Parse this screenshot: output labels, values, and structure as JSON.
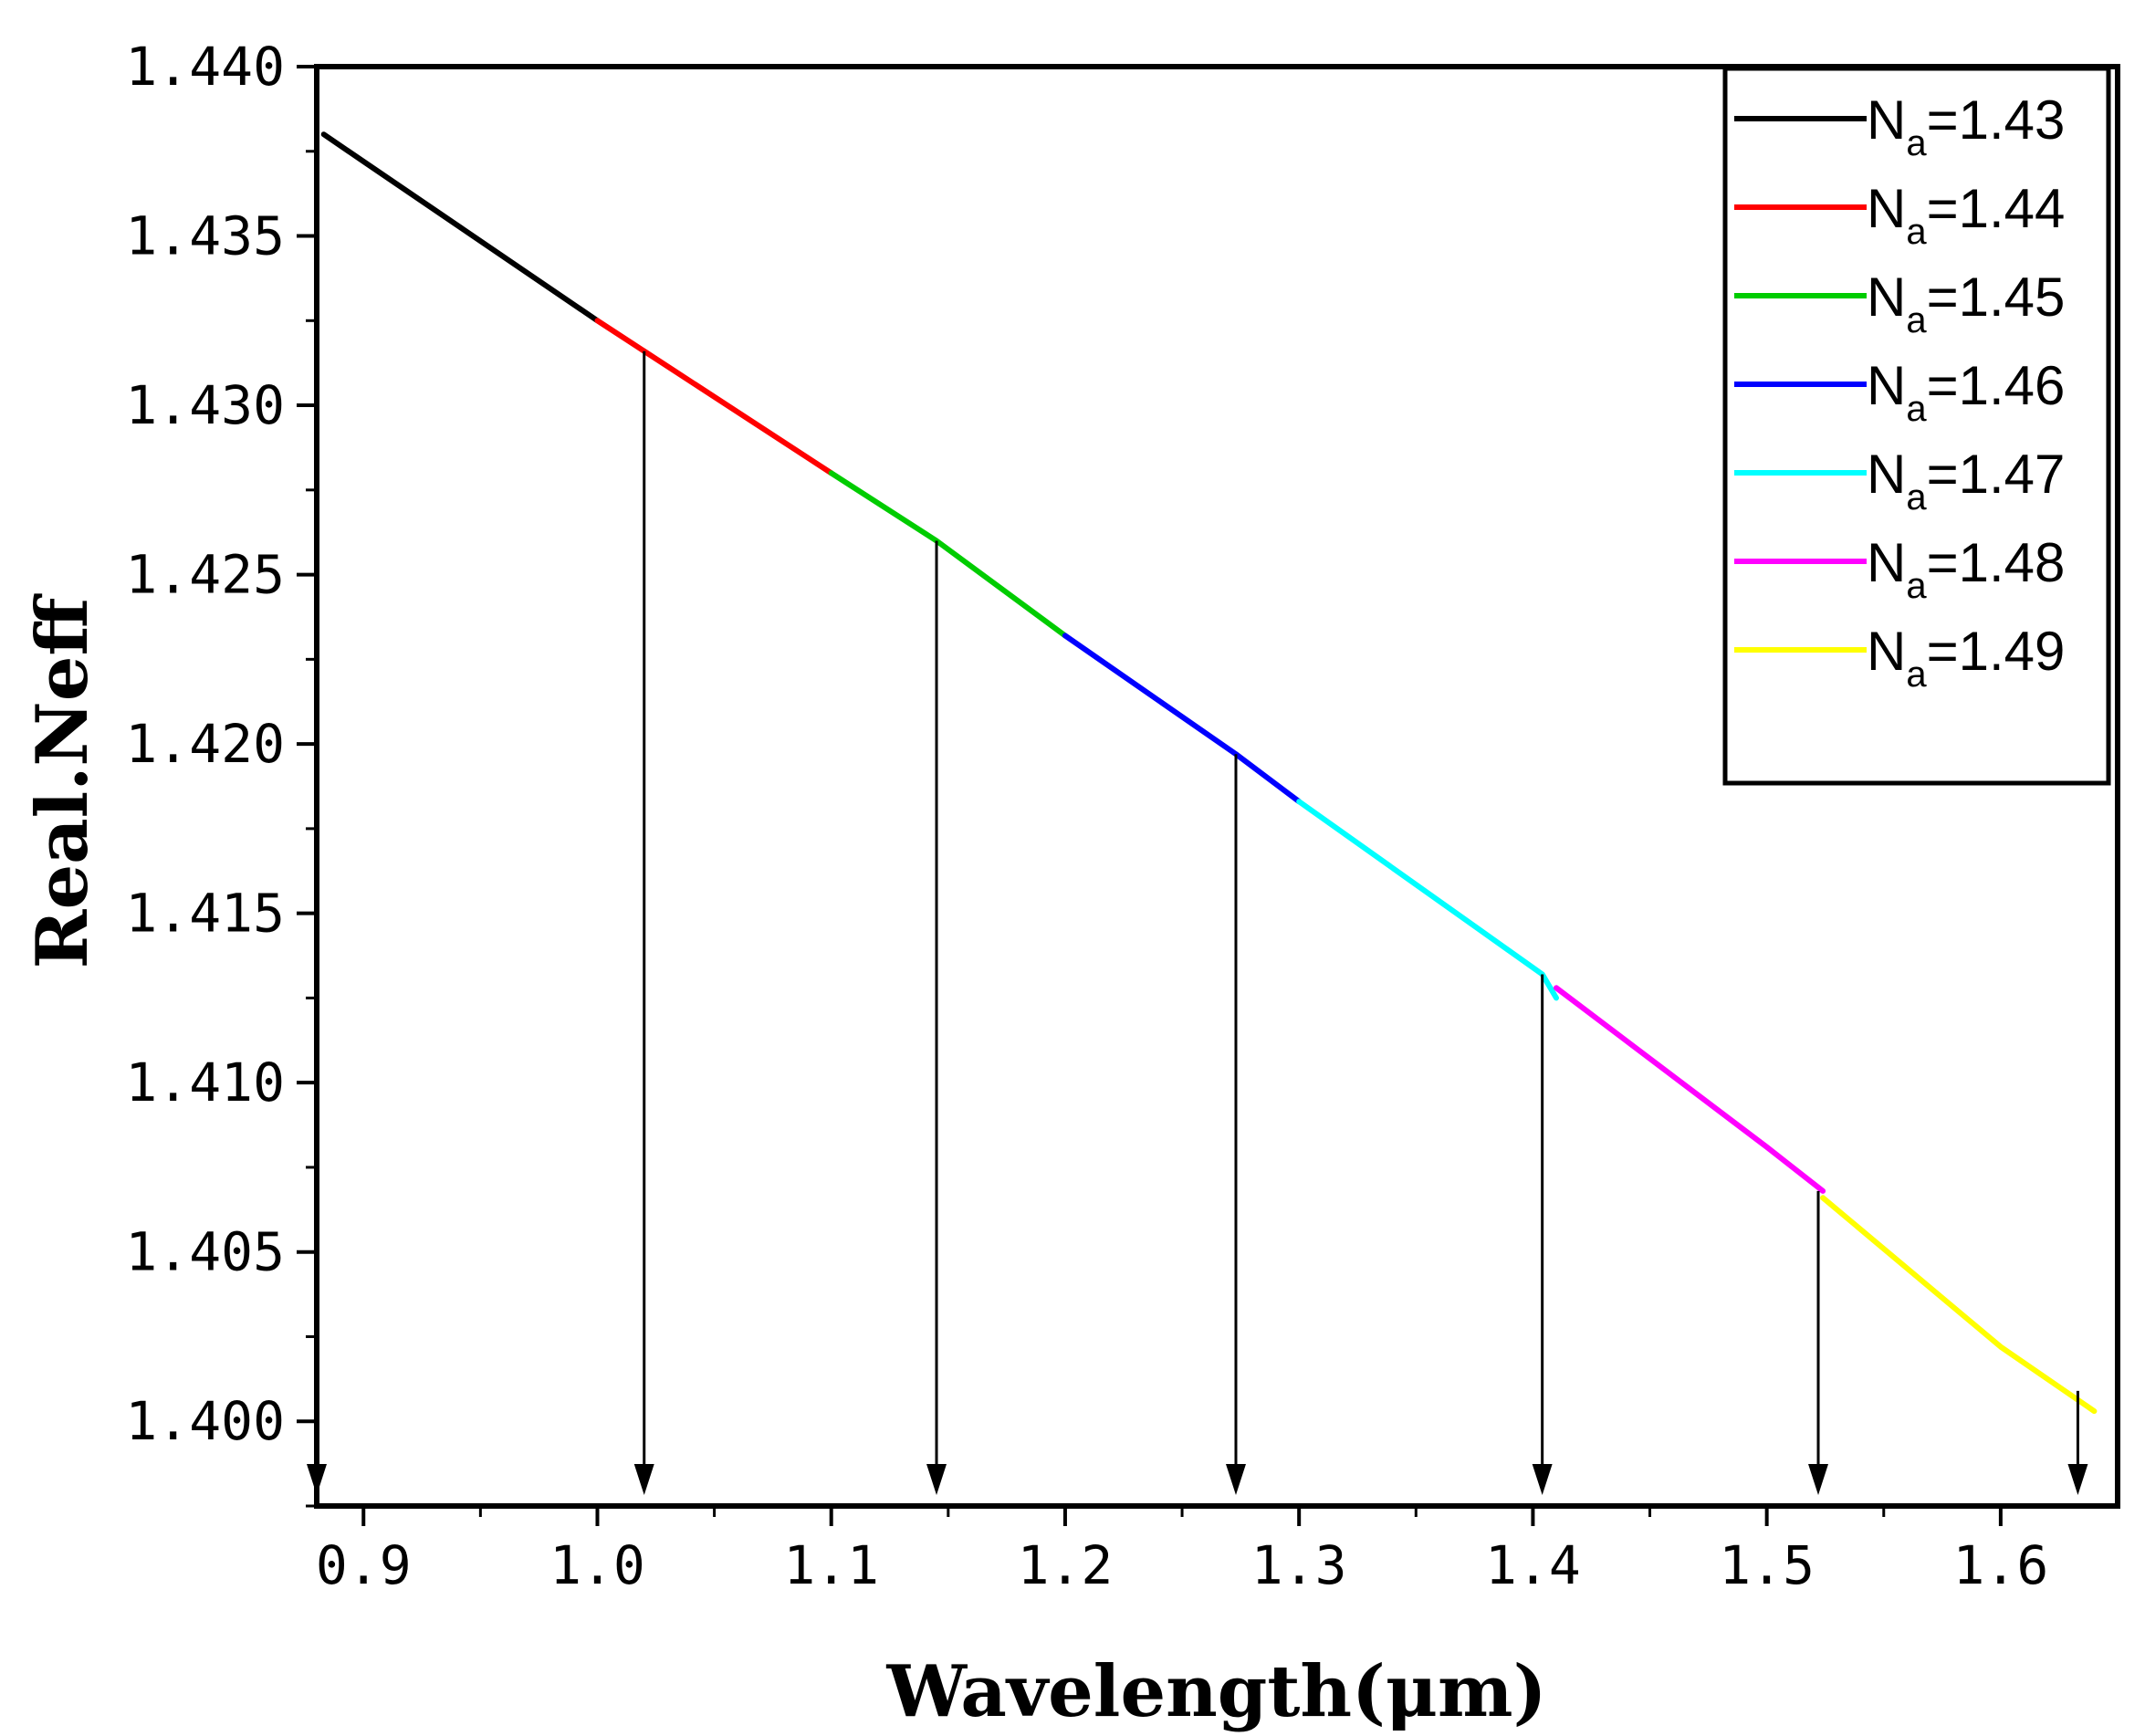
{
  "chart_data": {
    "type": "line",
    "title": "",
    "xlabel": "Wavelength(μm)",
    "ylabel": "Real.Neff",
    "xlim": [
      0.88,
      1.65
    ],
    "ylim": [
      1.3975,
      1.44
    ],
    "x_ticks": [
      0.9,
      1.0,
      1.1,
      1.2,
      1.3,
      1.4,
      1.5,
      1.6
    ],
    "x_tick_labels": [
      "0.9",
      "1.0",
      "1.1",
      "1.2",
      "1.3",
      "1.4",
      "1.5",
      "1.6"
    ],
    "y_ticks": [
      1.4,
      1.405,
      1.41,
      1.415,
      1.42,
      1.425,
      1.43,
      1.435,
      1.44
    ],
    "y_tick_labels": [
      "1.400",
      "1.405",
      "1.410",
      "1.415",
      "1.420",
      "1.425",
      "1.430",
      "1.435",
      "1.440"
    ],
    "grid": false,
    "legend_position": "top-right",
    "series": [
      {
        "name": "Na=1.43",
        "legend_base": "N",
        "legend_sub": "a",
        "legend_value": "=1.43",
        "color": "#000000",
        "x": [
          0.883,
          0.9,
          1.0
        ],
        "y": [
          1.438,
          1.4372,
          1.4325
        ]
      },
      {
        "name": "Na=1.44",
        "legend_base": "N",
        "legend_sub": "a",
        "legend_value": "=1.44",
        "color": "#ff0000",
        "x": [
          1.0,
          1.02,
          1.1
        ],
        "y": [
          1.4325,
          1.4316,
          1.428
        ]
      },
      {
        "name": "Na=1.45",
        "legend_base": "N",
        "legend_sub": "a",
        "legend_value": "=1.45",
        "color": "#00cc00",
        "x": [
          1.1,
          1.145,
          1.2
        ],
        "y": [
          1.428,
          1.426,
          1.4232
        ]
      },
      {
        "name": "Na=1.46",
        "legend_base": "N",
        "legend_sub": "a",
        "legend_value": "=1.46",
        "color": "#0000ff",
        "x": [
          1.2,
          1.273,
          1.3
        ],
        "y": [
          1.4232,
          1.4197,
          1.4183
        ]
      },
      {
        "name": "Na=1.47",
        "legend_base": "N",
        "legend_sub": "a",
        "legend_value": "=1.47",
        "color": "#00ffff",
        "x": [
          1.3,
          1.404,
          1.41
        ],
        "y": [
          1.4183,
          1.4132,
          1.4125
        ]
      },
      {
        "name": "Na=1.48",
        "legend_base": "N",
        "legend_sub": "a",
        "legend_value": "=1.48",
        "color": "#ff00ff",
        "x": [
          1.41,
          1.5,
          1.524
        ],
        "y": [
          1.4128,
          1.4081,
          1.4068
        ]
      },
      {
        "name": "Na=1.49",
        "legend_base": "N",
        "legend_sub": "a",
        "legend_value": "=1.49",
        "color": "#ffff00",
        "x": [
          1.524,
          1.6,
          1.64
        ],
        "y": [
          1.4066,
          1.4022,
          1.4003
        ]
      }
    ],
    "annotations": {
      "resonance_wavelengths": [
        0.88,
        1.02,
        1.145,
        1.273,
        1.404,
        1.522,
        1.633
      ],
      "resonance_neff": [
        1.4383,
        1.4316,
        1.426,
        1.4197,
        1.4132,
        1.4068,
        1.4009
      ]
    }
  }
}
